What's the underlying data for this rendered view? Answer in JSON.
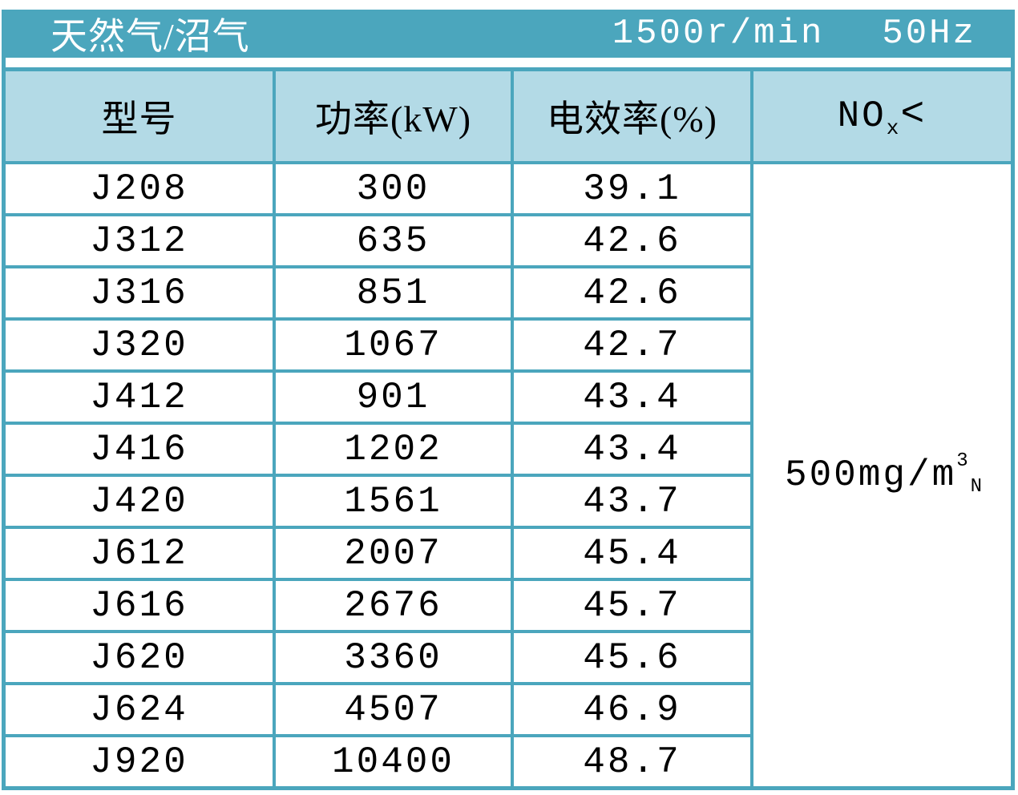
{
  "colors": {
    "teal_accent": "#4ba6bd",
    "header_light_blue": "#b3dae6",
    "title_text": "#ffffff",
    "body_text": "#000000"
  },
  "title_bar": {
    "fuel_type": "天然气/沼气",
    "speed": "1500r/min",
    "frequency": "50Hz"
  },
  "header": {
    "model": "型号",
    "power": "功率(kW)",
    "efficiency": "电效率(%)",
    "nox": {
      "base": "NO",
      "subscript": "x",
      "comparator": "<"
    }
  },
  "nox_limit": {
    "base": "500mg/m",
    "superscript": "3",
    "subscript": "N"
  },
  "rows": [
    {
      "model": "J208",
      "power_kw": "300",
      "efficiency_pct": "39.1"
    },
    {
      "model": "J312",
      "power_kw": "635",
      "efficiency_pct": "42.6"
    },
    {
      "model": "J316",
      "power_kw": "851",
      "efficiency_pct": "42.6"
    },
    {
      "model": "J320",
      "power_kw": "1067",
      "efficiency_pct": "42.7"
    },
    {
      "model": "J412",
      "power_kw": "901",
      "efficiency_pct": "43.4"
    },
    {
      "model": "J416",
      "power_kw": "1202",
      "efficiency_pct": "43.4"
    },
    {
      "model": "J420",
      "power_kw": "1561",
      "efficiency_pct": "43.7"
    },
    {
      "model": "J612",
      "power_kw": "2007",
      "efficiency_pct": "45.4"
    },
    {
      "model": "J616",
      "power_kw": "2676",
      "efficiency_pct": "45.7"
    },
    {
      "model": "J620",
      "power_kw": "3360",
      "efficiency_pct": "45.6"
    },
    {
      "model": "J624",
      "power_kw": "4507",
      "efficiency_pct": "46.9"
    },
    {
      "model": "J920",
      "power_kw": "10400",
      "efficiency_pct": "48.7"
    }
  ]
}
